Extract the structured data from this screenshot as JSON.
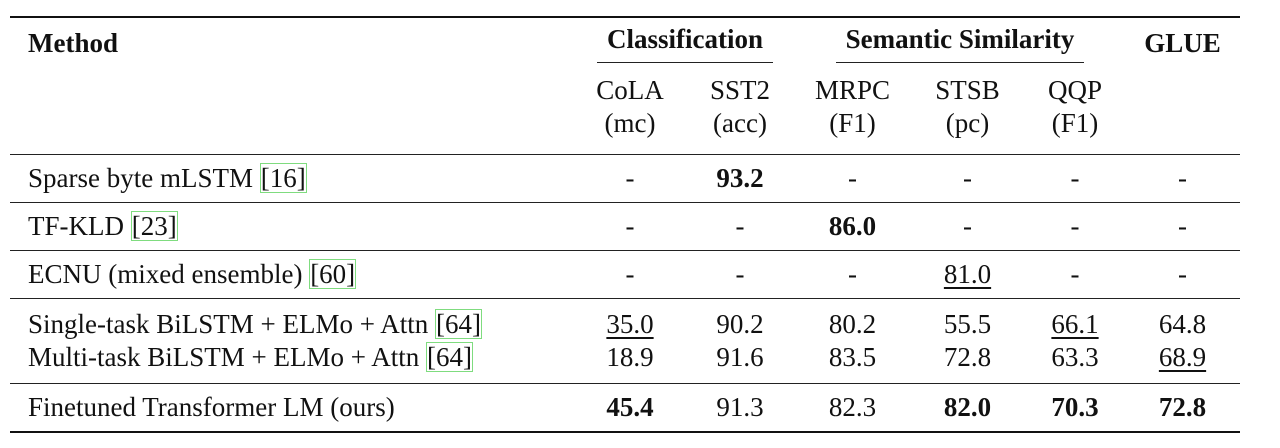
{
  "table": {
    "header": {
      "method": "Method",
      "groups": {
        "classification": "Classification",
        "semantic_similarity": "Semantic Similarity",
        "glue": "GLUE"
      },
      "columns": [
        {
          "name": "CoLA",
          "metric": "(mc)"
        },
        {
          "name": "SST2",
          "metric": "(acc)"
        },
        {
          "name": "MRPC",
          "metric": "(F1)"
        },
        {
          "name": "STSB",
          "metric": "(pc)"
        },
        {
          "name": "QQP",
          "metric": "(F1)"
        }
      ]
    },
    "rows": [
      {
        "method": "Sparse byte mLSTM ",
        "cite": "[16]",
        "cells": [
          "-",
          "93.2",
          "-",
          "-",
          "-",
          "-"
        ]
      },
      {
        "method": "TF-KLD ",
        "cite": "[23]",
        "cells": [
          "-",
          "-",
          "86.0",
          "-",
          "-",
          "-"
        ]
      },
      {
        "method": "ECNU (mixed ensemble) ",
        "cite": "[60]",
        "cells": [
          "-",
          "-",
          "-",
          "81.0",
          "-",
          "-"
        ]
      },
      {
        "method": "Single-task BiLSTM + ELMo + Attn ",
        "cite": "[64]",
        "cells": [
          "35.0",
          "90.2",
          "80.2",
          "55.5",
          "66.1",
          "64.8"
        ]
      },
      {
        "method": "Multi-task BiLSTM + ELMo + Attn ",
        "cite": "[64]",
        "cells": [
          "18.9",
          "91.6",
          "83.5",
          "72.8",
          "63.3",
          "68.9"
        ]
      },
      {
        "method": "Finetuned Transformer LM (ours)",
        "cite": "",
        "cells": [
          "45.4",
          "91.3",
          "82.3",
          "82.0",
          "70.3",
          "72.8"
        ]
      }
    ]
  }
}
